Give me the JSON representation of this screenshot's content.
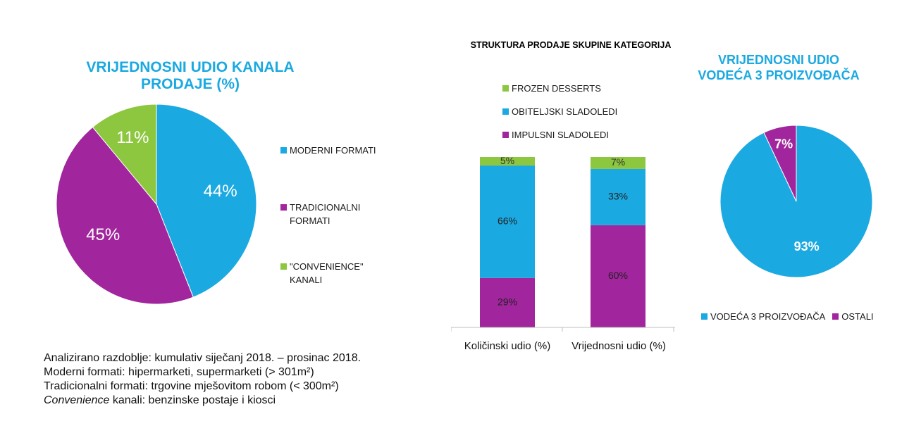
{
  "chart_data": [
    {
      "type": "pie",
      "title": "VRIJEDNOSNI UDIO KANALA PRODAJE (%)",
      "slices": [
        {
          "label": "MODERNI FORMATI",
          "value": 44,
          "display": "44%",
          "color": "#1ba9e1"
        },
        {
          "label": "TRADICIONALNI FORMATI",
          "value": 45,
          "display": "45%",
          "color": "#a1259c"
        },
        {
          "label": "\"CONVENIENCE\" KANALI",
          "value": 11,
          "display": "11%",
          "color": "#8dc63f"
        }
      ],
      "legend": [
        "MODERNI FORMATI",
        "TRADICIONALNI FORMATI",
        "\"CONVENIENCE\" KANALI"
      ],
      "legend_placement": "right"
    },
    {
      "type": "bar",
      "stacked": true,
      "title": "STRUKTURA PRODAJE SKUPINE KATEGORIJA",
      "categories": [
        "Količinski udio (%)",
        "Vrijednosni udio (%)"
      ],
      "series": [
        {
          "name": "IMPULSNI SLADOLEDI",
          "values": [
            29,
            60
          ],
          "labels": [
            "29%",
            "60%"
          ],
          "color": "#a1259c"
        },
        {
          "name": "OBITELJSKI SLADOLEDI",
          "values": [
            66,
            33
          ],
          "labels": [
            "66%",
            "33%"
          ],
          "color": "#1ba9e1"
        },
        {
          "name": "FROZEN DESSERTS",
          "values": [
            5,
            7
          ],
          "labels": [
            "5%",
            "7%"
          ],
          "color": "#8dc63f"
        }
      ],
      "legend": [
        "FROZEN DESSERTS",
        "OBITELJSKI SLADOLEDI",
        "IMPULSNI SLADOLEDI"
      ],
      "legend_placement": "top",
      "ylim": [
        0,
        100
      ]
    },
    {
      "type": "pie",
      "title": "VRIJEDNOSNI UDIO VODEĆA 3 PROIZVOĐAČA",
      "slices": [
        {
          "label": "VODEĆA 3 PROIZVOĐAČA",
          "value": 93,
          "display": "93%",
          "color": "#1ba9e1"
        },
        {
          "label": "OSTALI",
          "value": 7,
          "display": "7%",
          "color": "#a1259c"
        }
      ],
      "legend": [
        "VODEĆA 3 PROIZVOĐAČA",
        "OSTALI"
      ],
      "legend_placement": "bottom"
    }
  ],
  "notes": {
    "line1": "Analizirano razdoblje: kumulativ siječanj 2018. – prosinac 2018.",
    "line2": "Moderni formati: hipermarketi, supermarketi (> 301m²)",
    "line3": "Tradicionalni formati: trgovine mješovitom robom (< 300m²)",
    "line4_italic": "Convenience",
    "line4_rest": " kanali: benzinske postaje i kiosci"
  }
}
